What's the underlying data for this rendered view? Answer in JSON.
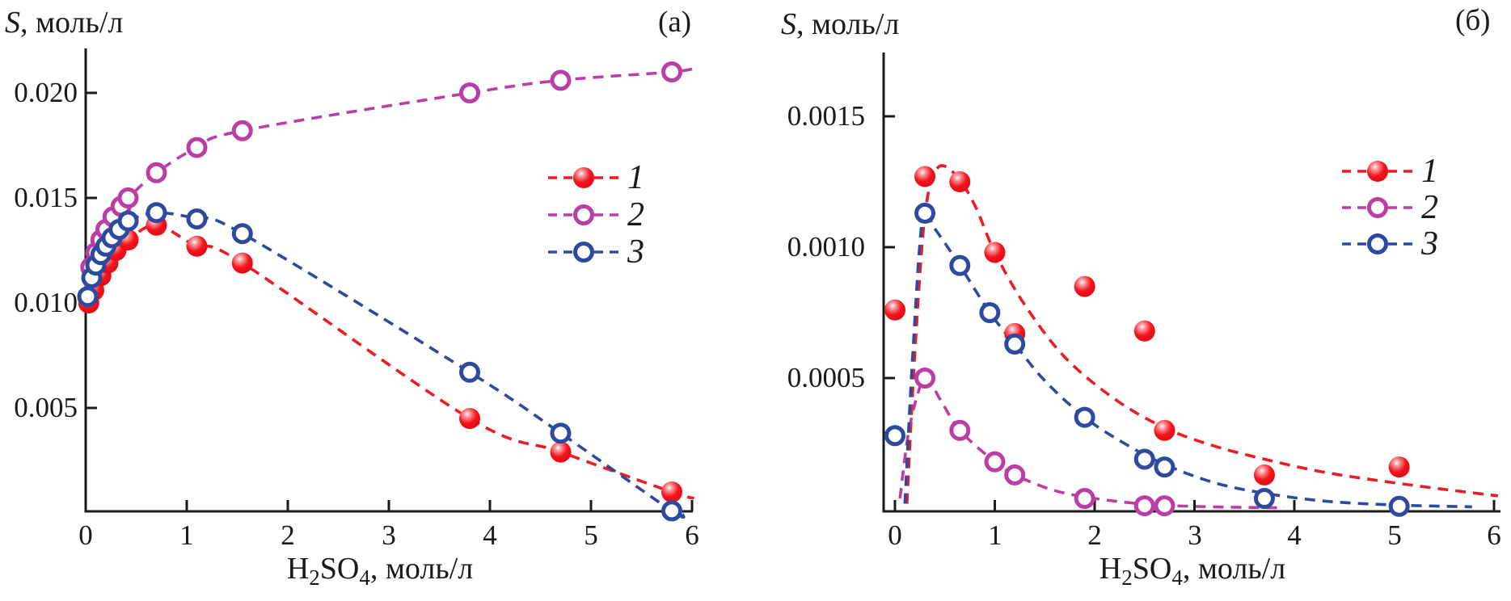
{
  "chart_data": [
    {
      "type": "line",
      "panel_tag": "(а)",
      "title": "",
      "ylabel_italic": "S",
      "ylabel_rest": ", моль/л",
      "xlabel_parts": {
        "p1": "H",
        "sub1": "2",
        "p2": "SO",
        "sub2": "4",
        "rest": ", моль/л"
      },
      "xlim": [
        0,
        6
      ],
      "ylim": [
        0,
        0.022
      ],
      "grid": false,
      "legend_position": "inside-upper-right",
      "x_tick_values": [
        0,
        1,
        2,
        3,
        4,
        5,
        6
      ],
      "x_tick_labels": [
        "0",
        "1",
        "2",
        "3",
        "4",
        "5",
        "6"
      ],
      "y_tick_values": [
        0.005,
        0.01,
        0.015,
        0.02
      ],
      "y_tick_labels": [
        "0.005",
        "0.010",
        "0.015",
        "0.020"
      ],
      "legend": [
        {
          "label": "1"
        },
        {
          "label": "2"
        },
        {
          "label": "3"
        }
      ],
      "series": [
        {
          "name": "1",
          "marker": "filled-circle",
          "color": "#ec1c24",
          "line_style": "dashed",
          "points": [
            [
              0.03,
              0.01
            ],
            [
              0.08,
              0.0106
            ],
            [
              0.15,
              0.0113
            ],
            [
              0.22,
              0.0119
            ],
            [
              0.3,
              0.0125
            ],
            [
              0.42,
              0.013
            ],
            [
              0.7,
              0.0137
            ],
            [
              1.1,
              0.0127
            ],
            [
              1.55,
              0.0119
            ],
            [
              3.8,
              0.0045
            ],
            [
              4.7,
              0.0029
            ],
            [
              5.8,
              0.001
            ]
          ],
          "curve": [
            [
              0.03,
              0.01
            ],
            [
              0.08,
              0.0106
            ],
            [
              0.15,
              0.0113
            ],
            [
              0.22,
              0.0119
            ],
            [
              0.3,
              0.0125
            ],
            [
              0.42,
              0.013
            ],
            [
              0.7,
              0.0137
            ],
            [
              1.1,
              0.0127
            ],
            [
              1.55,
              0.0119
            ],
            [
              3.8,
              0.0045
            ],
            [
              4.7,
              0.0029
            ],
            [
              5.8,
              0.001
            ],
            [
              6.02,
              0.0007
            ]
          ]
        },
        {
          "name": "2",
          "marker": "open-circle",
          "color": "#bb3ea6",
          "line_style": "dashed",
          "points": [
            [
              0.05,
              0.0117
            ],
            [
              0.1,
              0.0124
            ],
            [
              0.15,
              0.013
            ],
            [
              0.2,
              0.0135
            ],
            [
              0.27,
              0.0141
            ],
            [
              0.35,
              0.0146
            ],
            [
              0.42,
              0.015
            ],
            [
              0.7,
              0.0162
            ],
            [
              1.1,
              0.0174
            ],
            [
              1.55,
              0.0182
            ],
            [
              3.8,
              0.02
            ],
            [
              4.7,
              0.0206
            ],
            [
              5.8,
              0.021
            ]
          ],
          "curve": [
            [
              0.05,
              0.0117
            ],
            [
              0.1,
              0.0124
            ],
            [
              0.15,
              0.013
            ],
            [
              0.2,
              0.0135
            ],
            [
              0.27,
              0.0141
            ],
            [
              0.35,
              0.0146
            ],
            [
              0.42,
              0.015
            ],
            [
              0.7,
              0.0162
            ],
            [
              1.1,
              0.0174
            ],
            [
              1.55,
              0.0182
            ],
            [
              3.8,
              0.02
            ],
            [
              4.7,
              0.0206
            ],
            [
              5.8,
              0.021
            ],
            [
              6.04,
              0.0212
            ]
          ]
        },
        {
          "name": "3",
          "marker": "open-circle",
          "color": "#2e4a9e",
          "line_style": "dashed",
          "points": [
            [
              0.02,
              0.0103
            ],
            [
              0.06,
              0.0112
            ],
            [
              0.1,
              0.0118
            ],
            [
              0.15,
              0.0123
            ],
            [
              0.2,
              0.0127
            ],
            [
              0.26,
              0.0131
            ],
            [
              0.33,
              0.0135
            ],
            [
              0.42,
              0.0139
            ],
            [
              0.7,
              0.0143
            ],
            [
              1.1,
              0.014
            ],
            [
              1.55,
              0.0133
            ],
            [
              3.8,
              0.0067
            ],
            [
              4.7,
              0.0038
            ],
            [
              5.8,
              0.0001
            ]
          ],
          "curve": [
            [
              0.02,
              0.0103
            ],
            [
              0.06,
              0.0112
            ],
            [
              0.1,
              0.0118
            ],
            [
              0.15,
              0.0123
            ],
            [
              0.2,
              0.0127
            ],
            [
              0.26,
              0.0131
            ],
            [
              0.33,
              0.0135
            ],
            [
              0.42,
              0.0139
            ],
            [
              0.7,
              0.0143
            ],
            [
              1.1,
              0.014
            ],
            [
              1.55,
              0.0133
            ],
            [
              3.8,
              0.0067
            ],
            [
              4.7,
              0.0038
            ],
            [
              5.8,
              0.0001
            ],
            [
              5.9,
              0.0
            ]
          ]
        }
      ]
    },
    {
      "type": "line",
      "panel_tag": "(б)",
      "title": "",
      "ylabel_italic": "S",
      "ylabel_rest": ", моль/л",
      "xlabel_parts": {
        "p1": "H",
        "sub1": "2",
        "p2": "SO",
        "sub2": "4",
        "rest": ", моль/л"
      },
      "xlim": [
        0,
        6
      ],
      "ylim": [
        0,
        0.00175
      ],
      "grid": false,
      "legend_position": "inside-upper-right",
      "x_tick_values": [
        0,
        1,
        2,
        3,
        4,
        5,
        6
      ],
      "x_tick_labels": [
        "0",
        "1",
        "2",
        "3",
        "4",
        "5",
        "6"
      ],
      "y_tick_values": [
        0.0005,
        0.001,
        0.0015
      ],
      "y_tick_labels": [
        "0.0005",
        "0.0010",
        "0.0015"
      ],
      "legend": [
        {
          "label": "1"
        },
        {
          "label": "2"
        },
        {
          "label": "3"
        }
      ],
      "series": [
        {
          "name": "1",
          "marker": "filled-circle",
          "color": "#ec1c24",
          "line_style": "dashed",
          "points": [
            [
              0.0,
              0.00076
            ],
            [
              0.3,
              0.00127
            ],
            [
              0.65,
              0.00125
            ],
            [
              1.0,
              0.00098
            ],
            [
              1.2,
              0.00067
            ],
            [
              1.9,
              0.00085
            ],
            [
              2.5,
              0.00068
            ],
            [
              2.7,
              0.0003
            ],
            [
              3.7,
              0.00013
            ],
            [
              5.05,
              0.00016
            ]
          ],
          "curve": [
            [
              0.12,
              2e-05
            ],
            [
              0.2,
              0.0006
            ],
            [
              0.3,
              0.00112
            ],
            [
              0.42,
              0.0013
            ],
            [
              0.6,
              0.00128
            ],
            [
              0.8,
              0.00116
            ],
            [
              1.0,
              0.00098
            ],
            [
              1.3,
              0.00078
            ],
            [
              1.7,
              0.00058
            ],
            [
              2.2,
              0.00042
            ],
            [
              2.7,
              0.00031
            ],
            [
              3.2,
              0.00024
            ],
            [
              3.7,
              0.00019
            ],
            [
              4.3,
              0.00014
            ],
            [
              5.0,
              0.0001
            ],
            [
              5.6,
              7e-05
            ],
            [
              6.04,
              5e-05
            ]
          ]
        },
        {
          "name": "2",
          "marker": "open-circle",
          "color": "#bb3ea6",
          "line_style": "dashed",
          "points": [
            [
              0.3,
              0.0005
            ],
            [
              0.65,
              0.0003
            ],
            [
              1.0,
              0.00018
            ],
            [
              1.2,
              0.00013
            ],
            [
              1.9,
              4e-05
            ],
            [
              2.5,
              1.2e-05
            ],
            [
              2.7,
              1.2e-05
            ]
          ],
          "curve": [
            [
              0.05,
              4e-05
            ],
            [
              0.15,
              0.00032
            ],
            [
              0.3,
              0.0005
            ],
            [
              0.45,
              0.00042
            ],
            [
              0.65,
              0.0003
            ],
            [
              1.0,
              0.00018
            ],
            [
              1.2,
              0.00013
            ],
            [
              1.6,
              7e-05
            ],
            [
              2.0,
              4e-05
            ],
            [
              2.4,
              2.2e-05
            ],
            [
              2.8,
              1.2e-05
            ],
            [
              3.3,
              7e-06
            ],
            [
              3.9,
              4e-06
            ]
          ]
        },
        {
          "name": "3",
          "marker": "open-circle",
          "color": "#2e4a9e",
          "line_style": "dashed",
          "points": [
            [
              0.0,
              0.00028
            ],
            [
              0.3,
              0.00113
            ],
            [
              0.65,
              0.00093
            ],
            [
              0.95,
              0.00075
            ],
            [
              1.2,
              0.00063
            ],
            [
              1.9,
              0.00035
            ],
            [
              2.5,
              0.00019
            ],
            [
              2.7,
              0.00016
            ],
            [
              3.7,
              4e-05
            ],
            [
              5.05,
              1e-05
            ]
          ],
          "curve": [
            [
              0.1,
              2e-05
            ],
            [
              0.18,
              0.0006
            ],
            [
              0.28,
              0.00112
            ],
            [
              0.4,
              0.00107
            ],
            [
              0.65,
              0.00093
            ],
            [
              0.95,
              0.00075
            ],
            [
              1.2,
              0.00063
            ],
            [
              1.5,
              0.00049
            ],
            [
              1.9,
              0.00035
            ],
            [
              2.3,
              0.00025
            ],
            [
              2.7,
              0.00017
            ],
            [
              3.2,
              0.0001
            ],
            [
              3.7,
              6e-05
            ],
            [
              4.3,
              3e-05
            ],
            [
              5.0,
              1.5e-05
            ],
            [
              5.78,
              8e-06
            ]
          ]
        }
      ]
    }
  ]
}
